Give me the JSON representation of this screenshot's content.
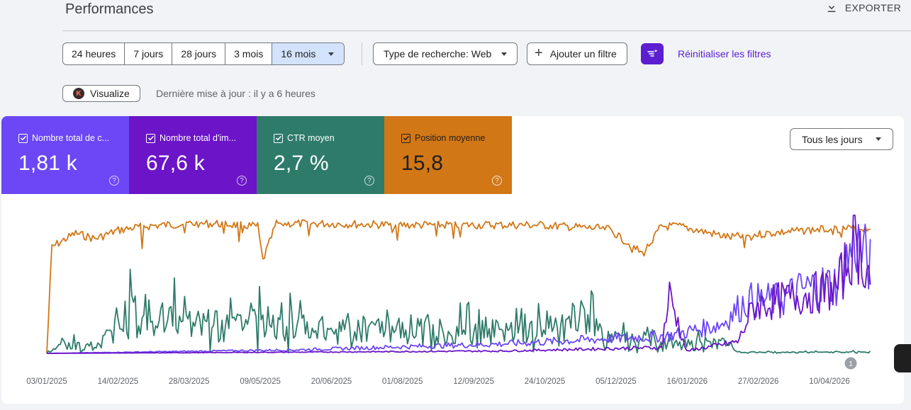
{
  "header": {
    "title": "Performances",
    "export_label": "EXPORTER"
  },
  "date_ranges": [
    {
      "label": "24 heures",
      "active": false
    },
    {
      "label": "7 jours",
      "active": false
    },
    {
      "label": "28 jours",
      "active": false
    },
    {
      "label": "3 mois",
      "active": false
    },
    {
      "label": "16 mois",
      "active": true
    }
  ],
  "filters": {
    "search_type": "Type de recherche: Web",
    "add_filter": "Ajouter un filtre",
    "reset": "Réinitialiser les filtres"
  },
  "visualize_label": "Visualize",
  "visualize_badge": "K",
  "last_update": "Dernière mise à jour : il y a 6 heures",
  "metrics": [
    {
      "label": "Nombre total de c...",
      "value": "1,81 k",
      "color": "#6b47f5"
    },
    {
      "label": "Nombre total d'im...",
      "value": "67,6 k",
      "color": "#6b14c8"
    },
    {
      "label": "CTR moyen",
      "value": "2,7 %",
      "color": "#2e7b6a"
    },
    {
      "label": "Position moyenne",
      "value": "15,8",
      "color": "#d27716"
    }
  ],
  "day_selector": "Tous les jours",
  "annotation_badge": "1",
  "chart_data": {
    "type": "line",
    "x_ticks": [
      "03/01/2025",
      "14/02/2025",
      "28/03/2025",
      "09/05/2025",
      "20/06/2025",
      "01/08/2025",
      "12/09/2025",
      "24/10/2025",
      "05/12/2025",
      "16/01/2026",
      "27/02/2026",
      "10/04/2026"
    ],
    "series": [
      {
        "color": "#d27716",
        "points": [
          [
            "2025-01-03",
            0.02
          ],
          [
            "2025-01-06",
            0.8
          ],
          [
            "2025-01-20",
            0.9
          ],
          [
            "2025-02-01",
            0.86
          ],
          [
            "2025-02-14",
            0.92
          ],
          [
            "2025-03-01",
            0.95
          ],
          [
            "2025-03-28",
            0.97
          ],
          [
            "2025-04-15",
            0.97
          ],
          [
            "2025-05-09",
            0.95
          ],
          [
            "2025-05-12",
            0.7
          ],
          [
            "2025-05-20",
            0.97
          ],
          [
            "2025-06-20",
            0.97
          ],
          [
            "2025-08-01",
            0.96
          ],
          [
            "2025-09-12",
            0.96
          ],
          [
            "2025-10-24",
            0.96
          ],
          [
            "2025-12-05",
            0.93
          ],
          [
            "2025-12-25",
            0.75
          ],
          [
            "2026-01-05",
            0.95
          ],
          [
            "2026-01-16",
            0.95
          ],
          [
            "2026-02-15",
            0.87
          ],
          [
            "2026-03-10",
            0.9
          ],
          [
            "2026-04-10",
            0.93
          ],
          [
            "2026-05-10",
            0.94
          ]
        ]
      },
      {
        "color": "#2e7b6a",
        "points": [
          [
            "2025-01-03",
            0.03
          ],
          [
            "2025-01-15",
            0.2
          ],
          [
            "2025-02-01",
            0.12
          ],
          [
            "2025-02-18",
            0.85
          ],
          [
            "2025-03-10",
            0.78
          ],
          [
            "2025-04-20",
            0.6
          ],
          [
            "2025-05-09",
            0.8
          ],
          [
            "2025-06-20",
            0.45
          ],
          [
            "2025-07-15",
            0.6
          ],
          [
            "2025-08-01",
            0.55
          ],
          [
            "2025-09-12",
            0.5
          ],
          [
            "2025-10-24",
            0.48
          ],
          [
            "2025-11-18",
            0.83
          ],
          [
            "2025-12-05",
            0.35
          ],
          [
            "2026-01-16",
            0.2
          ],
          [
            "2026-02-10",
            0.25
          ],
          [
            "2026-02-20",
            0.03
          ],
          [
            "2026-03-15",
            0.02
          ],
          [
            "2026-05-10",
            0.03
          ]
        ]
      },
      {
        "color": "#6b47f5",
        "points": [
          [
            "2025-01-03",
            0.0
          ],
          [
            "2025-06-01",
            0.03
          ],
          [
            "2025-10-01",
            0.08
          ],
          [
            "2026-01-10",
            0.15
          ],
          [
            "2026-02-10",
            0.25
          ],
          [
            "2026-02-25",
            0.45
          ],
          [
            "2026-03-15",
            0.45
          ],
          [
            "2026-04-01",
            0.55
          ],
          [
            "2026-04-20",
            0.6
          ],
          [
            "2026-05-01",
            0.96
          ],
          [
            "2026-05-10",
            0.75
          ]
        ]
      },
      {
        "color": "#6b14c8",
        "points": [
          [
            "2025-01-03",
            0.0
          ],
          [
            "2025-06-01",
            0.01
          ],
          [
            "2025-10-01",
            0.02
          ],
          [
            "2026-01-05",
            0.05
          ],
          [
            "2026-01-10",
            0.5
          ],
          [
            "2026-01-20",
            0.02
          ],
          [
            "2026-02-20",
            0.1
          ],
          [
            "2026-03-01",
            0.4
          ],
          [
            "2026-04-01",
            0.5
          ],
          [
            "2026-04-20",
            0.55
          ],
          [
            "2026-05-01",
            0.96
          ],
          [
            "2026-05-10",
            0.65
          ]
        ]
      }
    ]
  }
}
